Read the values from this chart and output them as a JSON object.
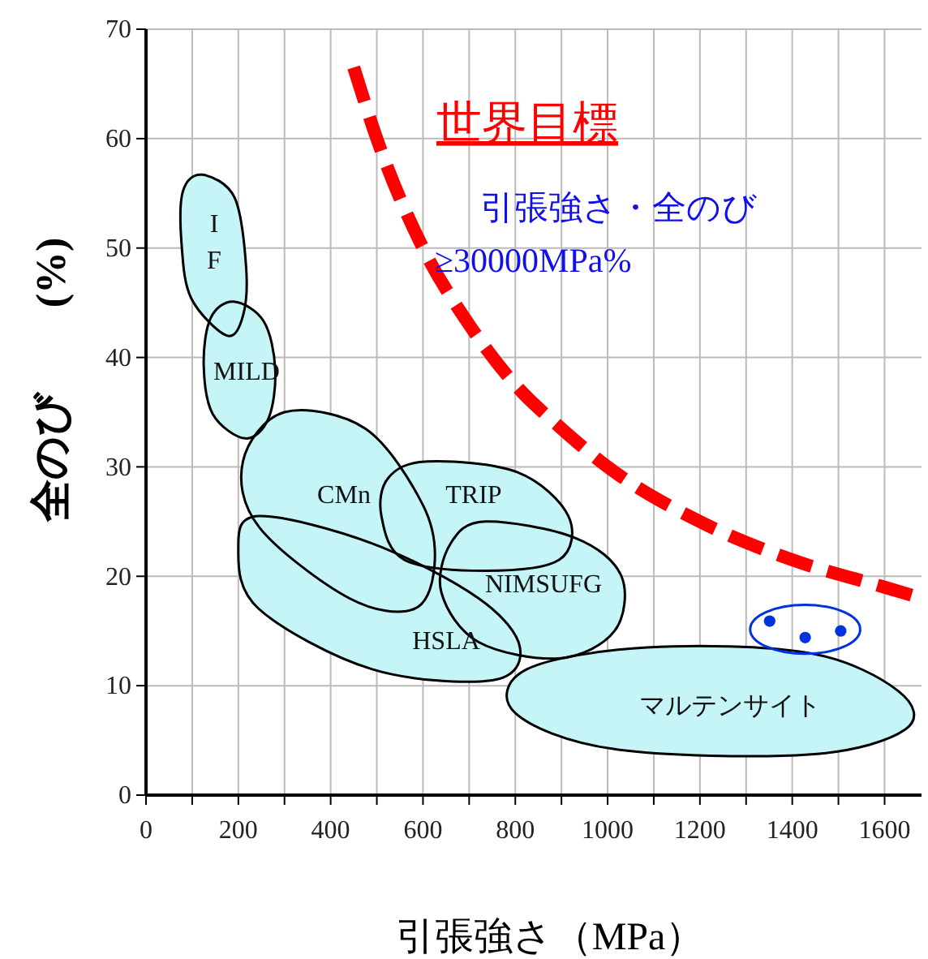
{
  "chart_data": {
    "type": "scatter",
    "title": "世界目標",
    "xlabel": "引張強さ（MPa）",
    "ylabel": "全のび　　(%)",
    "xlim": [
      0,
      1680
    ],
    "ylim": [
      0,
      70
    ],
    "xticks": [
      0,
      {
        "value": 100,
        "label": null
      },
      200,
      {
        "value": 300,
        "label": null
      },
      400,
      {
        "value": 500,
        "label": null
      },
      600,
      {
        "value": 700,
        "label": null
      },
      800,
      {
        "value": 900,
        "label": null
      },
      1000,
      {
        "value": 1100,
        "label": null
      },
      1200,
      {
        "value": 1300,
        "label": null
      },
      1400,
      {
        "value": 1500,
        "label": null
      },
      1600
    ],
    "yticks": [
      0,
      10,
      20,
      30,
      40,
      50,
      60,
      70
    ],
    "grid": true,
    "annotations": [
      "引張強さ・全のび\n≥30000MPa%",
      "I\nF",
      "MILD",
      "CMn",
      "TRIP",
      "NIMSUFG",
      "HSLA",
      "マルテンサイト"
    ],
    "series": [
      {
        "type": "area",
        "color": "#c6f5f7",
        "x": [
          245,
          490,
          720,
          810,
          750,
          490,
          245,
          200
        ],
        "values": [
          25.5,
          23,
          18,
          13.5,
          10.5,
          11.5,
          17,
          22.5
        ]
      },
      {
        "type": "area",
        "color": "#c6f5f7",
        "x": [
          1085,
          1435,
          1630,
          1645,
          1435,
          1015,
          800,
          825
        ],
        "values": [
          13.5,
          13,
          9.5,
          6,
          3.7,
          4.2,
          7.5,
          11.5
        ]
      },
      {
        "type": "area",
        "color": "#c6f5f7",
        "x": [
          610,
          805,
          915,
          895,
          735,
          560,
          510,
          525
        ],
        "values": [
          30.5,
          29.5,
          25.5,
          21.5,
          20.5,
          21.5,
          25.5,
          29
        ]
      },
      {
        "type": "area",
        "color": "#c6f5f7",
        "x": [
          735,
          930,
          1030,
          1015,
          895,
          720,
          640,
          660
        ],
        "values": [
          25,
          23.5,
          20,
          15,
          12.5,
          14,
          18.5,
          23
        ]
      },
      {
        "type": "area",
        "color": "#c6f5f7",
        "x": [
          300,
          475,
          600,
          625,
          580,
          440,
          245,
          210
        ],
        "values": [
          35,
          33.5,
          26.5,
          21,
          17,
          18,
          24.5,
          30.5
        ]
      },
      {
        "type": "area",
        "color": "#c6f5f7",
        "x": [
          190,
          255,
          280,
          265,
          215,
          145,
          125,
          140
        ],
        "values": [
          45.1,
          43.3,
          38.9,
          34.4,
          32.6,
          34.8,
          39.3,
          43.6
        ]
      },
      {
        "type": "area",
        "color": "#c6f5f7",
        "x": [
          122,
          192,
          217,
          210,
          175,
          98,
          77,
          80
        ],
        "values": [
          56.7,
          54.6,
          48.2,
          43.8,
          42,
          45.4,
          50.4,
          55.2
        ]
      },
      {
        "type": "line",
        "color": "#ff0000",
        "line_style": "dashed",
        "marker": "none",
        "x": [
          450,
          500,
          600,
          700,
          800,
          900,
          1000,
          1200,
          1400,
          1600,
          1680
        ],
        "values": [
          66.5,
          60,
          50,
          43,
          37.5,
          33.5,
          30,
          25,
          21.5,
          19,
          18
        ]
      },
      {
        "color": "#0033dd",
        "marker": "circle",
        "x": [
          1351,
          1428,
          1505
        ],
        "values": [
          15.9,
          14.4,
          15
        ]
      }
    ]
  }
}
